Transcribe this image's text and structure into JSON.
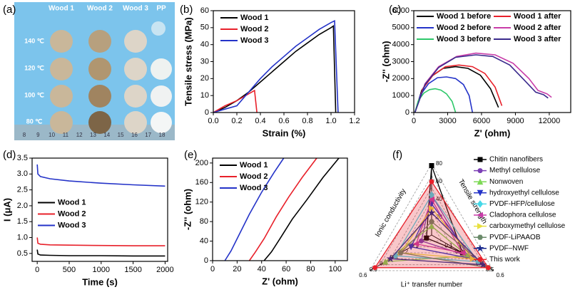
{
  "chart_data": [
    {
      "type": "image",
      "panel": "(a)",
      "columns": [
        "Wood 1",
        "Wood 2",
        "Wood 3",
        "PP"
      ],
      "rows": [
        "140 ℃",
        "120 ℃",
        "100 ℃",
        "80 ℃"
      ],
      "ruler": [
        8,
        9,
        10,
        11,
        12,
        13,
        14,
        15,
        16,
        17,
        18
      ]
    },
    {
      "type": "line",
      "panel": "(b)",
      "xlabel": "Strain (%)",
      "ylabel": "Tensile stress (MPa)",
      "xlim": [
        0,
        1.2
      ],
      "xticks": [
        {
          "value": 0,
          "label": "0.0"
        },
        0.2,
        0.4,
        0.6,
        0.8,
        {
          "value": 1,
          "label": "1.0"
        },
        1.2
      ],
      "ylim": [
        0,
        60
      ],
      "yticks": [
        0,
        10,
        20,
        30,
        40,
        50,
        60
      ],
      "legend": "upper left",
      "series": [
        {
          "name": "Wood 1",
          "color": "#000000",
          "x": [
            0,
            0.1,
            0.2,
            0.3,
            0.4,
            0.5,
            0.6,
            0.7,
            0.8,
            0.9,
            1.0,
            1.02,
            1.04
          ],
          "values": [
            0,
            3,
            7,
            12,
            18,
            24,
            30,
            36,
            41,
            46,
            50,
            51,
            0
          ]
        },
        {
          "name": "Wood 2",
          "color": "#e8202a",
          "x": [
            0,
            0.1,
            0.2,
            0.3,
            0.35,
            0.37
          ],
          "values": [
            0,
            4,
            7,
            11,
            13,
            0
          ]
        },
        {
          "name": "Wood 3",
          "color": "#2433c8",
          "x": [
            0,
            0.1,
            0.2,
            0.3,
            0.4,
            0.5,
            0.6,
            0.7,
            0.8,
            0.9,
            1.0,
            1.03,
            1.06
          ],
          "values": [
            0,
            2,
            4,
            12,
            20,
            27,
            33,
            39,
            44,
            49,
            53,
            54,
            0
          ]
        }
      ]
    },
    {
      "type": "line",
      "panel": "(c)",
      "xlabel": "Z' (ohm)",
      "ylabel": "-Z'' (ohm)",
      "xlim": [
        0,
        13900
      ],
      "xticks": [
        0,
        3000,
        6000,
        9000,
        12000
      ],
      "ylim": [
        0,
        6000
      ],
      "yticks": [
        0,
        1000,
        2000,
        3000,
        4000,
        5000,
        6000
      ],
      "legend": "upper center",
      "legend_columns": 2,
      "series": [
        {
          "name": "Wood 1 before",
          "color": "#000000",
          "x": [
            100,
            700,
            1500,
            2600,
            3700,
            4800,
            5900,
            6800,
            7500
          ],
          "values": [
            0,
            1300,
            2100,
            2600,
            2700,
            2600,
            2200,
            1400,
            300
          ]
        },
        {
          "name": "Wood 1 after",
          "color": "#e8202a",
          "x": [
            100,
            800,
            1700,
            2800,
            4000,
            5200,
            6300,
            7200,
            7800
          ],
          "values": [
            0,
            1400,
            2200,
            2700,
            2800,
            2700,
            2300,
            1500,
            400
          ]
        },
        {
          "name": "Wood 2 before",
          "color": "#2433c8",
          "x": [
            100,
            600,
            1300,
            2100,
            2900,
            3700,
            4400,
            4900,
            5200
          ],
          "values": [
            0,
            1050,
            1700,
            2050,
            2100,
            2000,
            1650,
            1000,
            0
          ]
        },
        {
          "name": "Wood 2 after",
          "color": "#c83ca8",
          "x": [
            100,
            1000,
            2200,
            3800,
            5500,
            7200,
            8800,
            10200,
            11000,
            11800,
            12200
          ],
          "values": [
            0,
            1700,
            2700,
            3300,
            3500,
            3400,
            2900,
            2000,
            1300,
            1100,
            900
          ]
        },
        {
          "name": "Wood 3 before",
          "color": "#2ec86a",
          "x": [
            100,
            400,
            900,
            1400,
            1900,
            2400,
            2900,
            3400,
            3700
          ],
          "values": [
            0,
            700,
            1150,
            1350,
            1400,
            1320,
            1100,
            650,
            0
          ]
        },
        {
          "name": "Wood 3 after",
          "color": "#3a2a8c",
          "x": [
            100,
            1000,
            2200,
            3700,
            5500,
            7000,
            8500,
            9800,
            10800,
            11500,
            11900
          ],
          "values": [
            0,
            1650,
            2650,
            3250,
            3400,
            3300,
            2800,
            1900,
            1200,
            1050,
            850
          ]
        }
      ]
    },
    {
      "type": "line",
      "panel": "(d)",
      "xlabel": "Time (s)",
      "ylabel": "I (μA)",
      "xlim": [
        -80,
        2040
      ],
      "xticks": [
        0,
        500,
        1000,
        1500,
        2000
      ],
      "ylim": [
        0.25,
        3.5
      ],
      "yticks": [
        0.5,
        {
          "value": 1,
          "label": "1.0"
        },
        1.5,
        {
          "value": 2,
          "label": "2.0"
        },
        2.5,
        {
          "value": 3,
          "label": "3.0"
        },
        3.5
      ],
      "legend": "center left",
      "series": [
        {
          "name": "Wood 1",
          "color": "#000000",
          "x": [
            0,
            10,
            50,
            200,
            500,
            1000,
            1500,
            2000
          ],
          "values": [
            0.62,
            0.48,
            0.45,
            0.44,
            0.43,
            0.43,
            0.42,
            0.42
          ]
        },
        {
          "name": "Wood 2",
          "color": "#e8202a",
          "x": [
            0,
            10,
            50,
            200,
            500,
            1000,
            1500,
            2000
          ],
          "values": [
            1.0,
            0.82,
            0.79,
            0.77,
            0.76,
            0.75,
            0.74,
            0.74
          ]
        },
        {
          "name": "Wood 3",
          "color": "#2433c8",
          "x": [
            0,
            10,
            50,
            200,
            500,
            1000,
            1500,
            2000
          ],
          "values": [
            3.3,
            3.0,
            2.92,
            2.85,
            2.78,
            2.71,
            2.66,
            2.62
          ]
        }
      ]
    },
    {
      "type": "line",
      "panel": "(e)",
      "xlabel": "Z' (ohm)",
      "ylabel": "-Z'' (ohm)",
      "xlim": [
        0,
        110
      ],
      "xticks": [
        0,
        20,
        40,
        60,
        80,
        100
      ],
      "ylim": [
        0,
        210
      ],
      "yticks": [
        0,
        40,
        80,
        120,
        160,
        200
      ],
      "legend": "upper left",
      "series": [
        {
          "name": "Wood 1",
          "color": "#000000",
          "x": [
            42,
            48,
            55,
            65,
            77,
            90,
            103
          ],
          "values": [
            0,
            18,
            45,
            85,
            125,
            170,
            210
          ]
        },
        {
          "name": "Wood 2",
          "color": "#e8202a",
          "x": [
            30,
            35,
            42,
            52,
            62,
            73,
            85
          ],
          "values": [
            0,
            18,
            45,
            90,
            130,
            170,
            210
          ]
        },
        {
          "name": "Wood 3",
          "color": "#2433c8",
          "x": [
            10,
            15,
            20,
            30,
            40,
            50,
            58
          ],
          "values": [
            0,
            20,
            45,
            95,
            140,
            180,
            210
          ]
        }
      ]
    },
    {
      "type": "radar",
      "panel": "(f)",
      "legend": "right",
      "axes": [
        {
          "name": "Tensile strength",
          "lim": [
            0,
            80
          ],
          "ticks": [
            20,
            40,
            60,
            80
          ]
        },
        {
          "name": "Ionic conductivity",
          "lim": [
            0,
            0.6
          ],
          "ticks": [
            0.1,
            0.2,
            0.3,
            0.4,
            0.5,
            0.6
          ]
        },
        {
          "name": "Li⁺ transfer number",
          "lim": [
            0,
            0.6
          ],
          "ticks": [
            0.1,
            0.2,
            0.3,
            0.4,
            0.5,
            0.6
          ]
        }
      ],
      "series": [
        {
          "name": "Chitin nanofibers",
          "color": "#000000",
          "marker": "square",
          "values": [
            78,
            0.05,
            0.3
          ]
        },
        {
          "name": "Methyl cellulose",
          "color": "#7b3fb5",
          "marker": "circle",
          "values": [
            45,
            0.1,
            0.35
          ]
        },
        {
          "name": "Nonwoven",
          "color": "#7ed957",
          "marker": "triangle-up",
          "values": [
            10,
            0.45,
            0.35
          ]
        },
        {
          "name": "hydroxyethyl cellulose",
          "color": "#2433c8",
          "marker": "triangle-down",
          "values": [
            35,
            0.2,
            0.4
          ]
        },
        {
          "name": "PVDF-HFP/cellulose",
          "color": "#45d8e8",
          "marker": "diamond",
          "values": [
            45,
            0.35,
            0.45
          ]
        },
        {
          "name": "Cladophora cellulose",
          "color": "#c83ca8",
          "marker": "triangle-left",
          "values": [
            40,
            0.15,
            0.3
          ]
        },
        {
          "name": "carboxymethyl cellulose",
          "color": "#e8e040",
          "marker": "triangle-right",
          "values": [
            30,
            0.3,
            0.4
          ]
        },
        {
          "name": "PVDF-LiPAAOB",
          "color": "#6a8a6a",
          "marker": "hexagon",
          "values": [
            15,
            0.3,
            0.55
          ]
        },
        {
          "name": "PVDF–NWF",
          "color": "#1a2a8c",
          "marker": "star",
          "values": [
            25,
            0.4,
            0.5
          ]
        },
        {
          "name": "This work",
          "color": "#e8202a",
          "marker": "circle",
          "fill": true,
          "values": [
            60,
            0.55,
            0.55
          ]
        }
      ]
    }
  ]
}
